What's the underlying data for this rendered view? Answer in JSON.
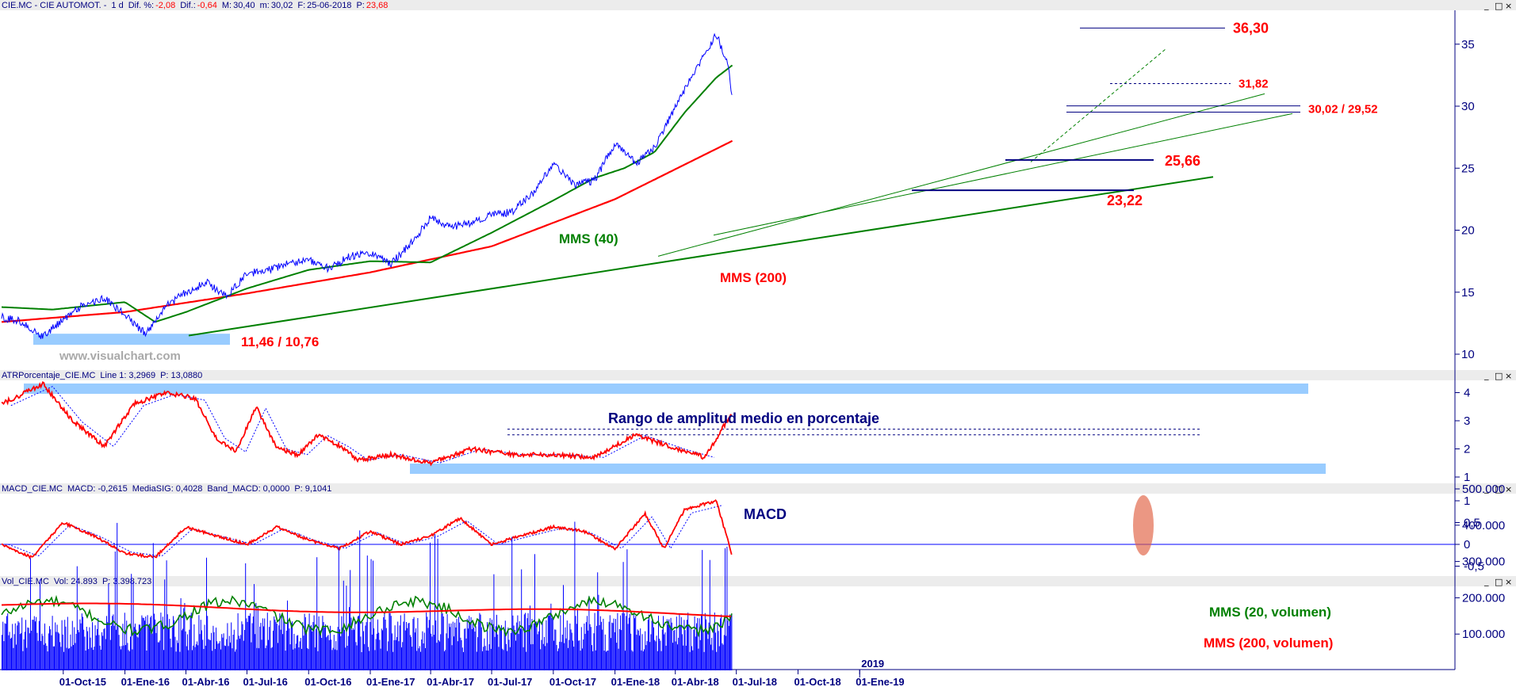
{
  "header": {
    "symbol": "CIE.MC - CIE AUTOMOT. -",
    "timeframe": "1 d",
    "dif_pct_label": "Dif. %:",
    "dif_pct": "-2,08",
    "dif_label": "Dif.:",
    "dif": "-0,64",
    "max_label": "M:",
    "max": "30,40",
    "min_label": "m:",
    "min": "30,02",
    "date_label": "F:",
    "date": "25-06-2018",
    "p_label": "P:",
    "p": "23,68"
  },
  "watermark": "www.visualchart.com",
  "panel_atr": {
    "label": "ATRPorcentaje_CIE.MC",
    "line_label": "Line 1:",
    "line_value": "3,2969",
    "p_label": "P:",
    "p_value": "13,0880"
  },
  "panel_macd": {
    "label": "MACD_CIE.MC",
    "macd_label": "MACD:",
    "macd_value": "-0,2615",
    "sig_label": "MediaSIG:",
    "sig_value": "0,4028",
    "band_label": "Band_MACD:",
    "band_value": "0,0000",
    "p_label": "P:",
    "p_value": "9,1041"
  },
  "panel_vol": {
    "label": "Vol_CIE.MC",
    "vol_label": "Vol:",
    "vol_value": "24.893",
    "p_label": "P:",
    "p_value": "3.398.723"
  },
  "colors": {
    "price": "#0000ff",
    "ma40": "#008000",
    "ma200": "#ff0000",
    "annotation": "#ff0000",
    "axis": "#000080",
    "band": "#99ccff"
  },
  "chart_data": [
    {
      "type": "line",
      "panel": "price",
      "y_ticks": [
        10,
        15,
        20,
        25,
        30,
        35
      ],
      "ylim": [
        9.5,
        37.5
      ],
      "x_labels": [
        "01-Oct-15",
        "01-Ene-16",
        "01-Abr-16",
        "01-Jul-16",
        "01-Oct-16",
        "01-Ene-17",
        "01-Abr-17",
        "01-Jul-17",
        "01-Oct-17",
        "01-Ene-18",
        "01-Abr-18",
        "01-Jul-18",
        "01-Oct-18",
        "2019",
        "01-Ene-19"
      ],
      "series": [
        {
          "role": "price",
          "x": [
            "2015-07-01",
            "2015-08-01",
            "2015-09-01",
            "2015-10-01",
            "2015-11-01",
            "2015-12-01",
            "2016-01-01",
            "2016-02-01",
            "2016-03-01",
            "2016-04-01",
            "2016-05-01",
            "2016-06-01",
            "2016-07-01",
            "2016-08-01",
            "2016-09-01",
            "2016-10-01",
            "2016-11-01",
            "2016-12-01",
            "2017-01-01",
            "2017-02-01",
            "2017-03-01",
            "2017-04-01",
            "2017-05-01",
            "2017-06-01",
            "2017-07-01",
            "2017-08-01",
            "2017-09-01",
            "2017-10-01",
            "2017-11-01",
            "2017-12-01",
            "2018-01-01",
            "2018-02-01",
            "2018-03-01",
            "2018-04-01",
            "2018-05-01",
            "2018-06-01",
            "2018-06-20",
            "2018-06-25"
          ],
          "values": [
            13.0,
            12.6,
            11.4,
            12.8,
            14.0,
            14.5,
            13.2,
            11.6,
            13.8,
            15.0,
            15.8,
            14.6,
            16.5,
            16.8,
            17.3,
            17.6,
            16.9,
            17.9,
            18.2,
            17.3,
            18.8,
            21.0,
            20.2,
            20.6,
            21.2,
            21.5,
            23.0,
            25.4,
            23.6,
            24.0,
            27.0,
            25.4,
            26.6,
            30.0,
            33.0,
            35.8,
            33.2,
            30.4
          ]
        },
        {
          "name": "MMS (40)",
          "role": "ma40",
          "x": [
            "2015-07-01",
            "2015-09-15",
            "2016-01-01",
            "2016-02-15",
            "2016-04-01",
            "2016-07-01",
            "2016-10-01",
            "2017-01-01",
            "2017-04-01",
            "2017-07-01",
            "2017-10-01",
            "2017-12-01",
            "2018-01-15",
            "2018-03-01",
            "2018-04-15",
            "2018-06-01",
            "2018-06-25"
          ],
          "values": [
            13.8,
            13.6,
            14.2,
            12.6,
            13.4,
            15.3,
            16.8,
            17.5,
            17.4,
            19.8,
            22.4,
            24.2,
            25.0,
            26.3,
            29.5,
            32.3,
            33.3
          ]
        },
        {
          "name": "MMS (200)",
          "role": "ma200",
          "x": [
            "2015-07-01",
            "2016-01-01",
            "2016-07-01",
            "2017-01-01",
            "2017-07-01",
            "2018-01-01",
            "2018-06-25"
          ],
          "values": [
            12.6,
            13.4,
            14.9,
            16.6,
            18.7,
            22.5,
            27.2
          ]
        }
      ],
      "annotations": [
        {
          "text": "36,30",
          "value": 36.3
        },
        {
          "text": "31,82",
          "value": 31.82
        },
        {
          "text": "30,02 / 29,52",
          "values": [
            30.02,
            29.52
          ]
        },
        {
          "text": "25,66",
          "value": 25.66
        },
        {
          "text": "23,22",
          "value": 23.22
        },
        {
          "text": "11,46 / 10,76",
          "values": [
            11.46,
            10.76
          ]
        },
        {
          "text": "MMS (40)"
        },
        {
          "text": "MMS (200)"
        }
      ]
    },
    {
      "type": "line",
      "panel": "atr",
      "title": "Rango de amplitud medio en porcentaje",
      "y_ticks": [
        1,
        2,
        3,
        4
      ],
      "ylim": [
        0.9,
        4.6
      ],
      "x": [
        "2015-07-01",
        "2015-09-01",
        "2015-10-15",
        "2015-12-01",
        "2016-01-15",
        "2016-03-01",
        "2016-04-15",
        "2016-05-15",
        "2016-06-15",
        "2016-07-15",
        "2016-08-15",
        "2016-09-15",
        "2016-10-15",
        "2016-11-15",
        "2016-12-15",
        "2017-02-01",
        "2017-04-01",
        "2017-06-01",
        "2017-08-01",
        "2017-10-01",
        "2017-12-01",
        "2018-02-01",
        "2018-04-01",
        "2018-05-15",
        "2018-06-25"
      ],
      "values": [
        3.6,
        4.3,
        3.0,
        2.1,
        3.6,
        4.0,
        3.8,
        2.4,
        1.9,
        3.5,
        2.0,
        1.8,
        2.5,
        2.1,
        1.6,
        1.8,
        1.5,
        2.0,
        1.8,
        1.8,
        1.7,
        2.5,
        2.0,
        1.7,
        3.3
      ]
    },
    {
      "type": "line",
      "panel": "macd",
      "title": "MACD",
      "y_ticks": [
        -0.5,
        0,
        0.5,
        1
      ],
      "ylim": [
        -0.75,
        1.15
      ],
      "x": [
        "2015-07-01",
        "2015-08-15",
        "2015-10-01",
        "2015-11-15",
        "2016-01-01",
        "2016-02-15",
        "2016-04-01",
        "2016-05-15",
        "2016-07-01",
        "2016-08-15",
        "2016-10-01",
        "2016-11-15",
        "2017-01-01",
        "2017-02-15",
        "2017-04-01",
        "2017-05-15",
        "2017-07-01",
        "2017-08-15",
        "2017-10-01",
        "2017-11-15",
        "2018-01-01",
        "2018-02-15",
        "2018-03-15",
        "2018-04-15",
        "2018-06-01",
        "2018-06-25"
      ],
      "values": [
        0.0,
        -0.3,
        0.5,
        0.2,
        -0.2,
        -0.3,
        0.4,
        0.2,
        0.0,
        0.4,
        0.1,
        -0.1,
        0.3,
        0.0,
        0.2,
        0.6,
        0.0,
        0.2,
        0.4,
        0.3,
        -0.1,
        0.7,
        -0.1,
        0.8,
        1.0,
        -0.26
      ]
    },
    {
      "type": "bar",
      "panel": "volume",
      "y_ticks": [
        100000,
        200000,
        300000,
        400000,
        500000
      ],
      "y_tick_labels": [
        "100.000",
        "200.000",
        "300.000",
        "400.000",
        "500.000"
      ],
      "ylim": [
        0,
        520000
      ],
      "series": [
        {
          "name": "MMS (20, volumen)",
          "role": "vol_ma20"
        },
        {
          "name": "MMS (200, volumen)",
          "role": "vol_ma200"
        }
      ],
      "last_volume": 24893
    }
  ]
}
